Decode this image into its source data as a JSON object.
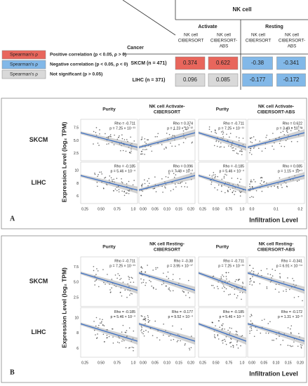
{
  "table": {
    "group": "NK cell",
    "subgroups": [
      "Activate",
      "Resting"
    ],
    "corner": "Cancer",
    "columns": [
      [
        "NK cell",
        "CIBERSORT"
      ],
      [
        "NK cell",
        "CIBERSORT-",
        "ABS"
      ],
      [
        "NK cell",
        "CIBERSORT"
      ],
      [
        "NK cell",
        "CIBERSORT-",
        "ABS"
      ]
    ],
    "rows": [
      {
        "label": "SKCM (n = 471)",
        "cells": [
          "0.374",
          "0.622",
          "-0.38",
          "-0.341"
        ],
        "colors": [
          "#e8665c",
          "#e8665c",
          "#82b8e8",
          "#82b8e8"
        ]
      },
      {
        "label": "LIHC (n = 371)",
        "cells": [
          "0.096",
          "0.085",
          "-0.177",
          "-0.172"
        ],
        "colors": [
          "#d9d9d9",
          "#d9d9d9",
          "#82b8e8",
          "#82b8e8"
        ]
      }
    ]
  },
  "legend": [
    {
      "key": "Spearman's ρ",
      "text": "Positive correlation (p < 0.05, ρ > 0)",
      "color": "#e8665c"
    },
    {
      "key": "Spearman's ρ",
      "text": "Negative correlation (p < 0.05, ρ < 0)",
      "color": "#82b8e8"
    },
    {
      "key": "Spearman's ρ",
      "text": "Not significant (p > 0.05)",
      "color": "#d9d9d9"
    }
  ],
  "panels": [
    {
      "letter": "A",
      "ylabel": "Expression Level (log₂ TPM)",
      "xlabel": "Infiltration Level",
      "columns": [
        [
          "Purity"
        ],
        [
          "NK cell Activate-",
          "CIBERSORT"
        ],
        [
          "Purity"
        ],
        [
          "NK cell Activate-",
          "CIBERSORT-ABS"
        ]
      ],
      "xticks": [
        [
          "0.25",
          "0.50",
          "0.75",
          "1.0"
        ],
        [
          "0.00",
          "0.05",
          "0.10",
          "0.15",
          "0.20"
        ],
        [
          "0.25",
          "0.50",
          "0.75",
          "1.0"
        ],
        [
          "0.0",
          "0.1",
          "0.2"
        ]
      ],
      "rows": [
        {
          "label": "SKCM",
          "yticks": [
            "7.5",
            "5.0",
            "2.5"
          ],
          "cells": [
            [
              "Rho = -0.711",
              "p = 7.25 × 10⁻¹¹"
            ],
            [
              "Rho = 0.374",
              "p = 1.23 × 10⁻¹²"
            ],
            [
              "Rho = -0.711",
              "p = 7.25 × 10⁻¹¹"
            ],
            [
              "Rho = 0.622",
              "p = 3.49 × 10⁻³³"
            ]
          ]
        },
        {
          "label": "LIHC",
          "yticks": [
            "10",
            "8",
            "6"
          ],
          "cells": [
            [
              "Rho = -0.185",
              "p = 5.46 × 10⁻⁴"
            ],
            [
              "Rho = 0.096",
              "p = 7.48 × 10⁻²"
            ],
            [
              "Rho = -0.185",
              "p = 5.46 × 10⁻⁴"
            ],
            [
              "Rho = 0.085",
              "p = 1.15 × 10⁻¹"
            ]
          ]
        }
      ]
    },
    {
      "letter": "B",
      "ylabel": "Expression Level (log₂ TPM)",
      "xlabel": "Infiltration Level",
      "columns": [
        [
          "Purity"
        ],
        [
          "NK cell Resting-",
          "CIBERSORT"
        ],
        [
          "Purity"
        ],
        [
          "NK cell Resting-",
          "CIBERSORT-ABS"
        ]
      ],
      "xticks": [
        [
          "0.25",
          "0.50",
          "0.75",
          "1.0"
        ],
        [
          "0.00",
          "0.05",
          "0.10",
          "0.15",
          "0.20"
        ],
        [
          "0.25",
          "0.50",
          "0.75",
          "1.0"
        ],
        [
          "0.00",
          "0.05",
          "0.10",
          "0.15",
          "0.20"
        ]
      ],
      "rows": [
        {
          "label": "SKCM",
          "yticks": [
            "7.5",
            "5.0",
            "2.5"
          ],
          "cells": [
            [
              "Rho = -0.711",
              "p = 7.25 × 10⁻¹¹"
            ],
            [
              "Rho = -0.38",
              "p = 3.95 × 10⁻¹⁷"
            ],
            [
              "Rho = -0.711",
              "p = 7.25 × 10⁻¹¹"
            ],
            [
              "Rho = -0.341",
              "p = 6.91 × 10⁻¹⁴"
            ]
          ]
        },
        {
          "label": "LIHC",
          "yticks": [
            "10",
            "8",
            "6"
          ],
          "cells": [
            [
              "Rho = -0.185",
              "p = 5.46 × 10⁻⁴"
            ],
            [
              "Rho = -0.177",
              "p = 9.52 × 10⁻⁴"
            ],
            [
              "Rho = -0.185",
              "p = 5.46 × 10⁻⁴"
            ],
            [
              "Rho = -0.172",
              "p = 1.31 × 10⁻³"
            ]
          ]
        }
      ]
    }
  ]
}
